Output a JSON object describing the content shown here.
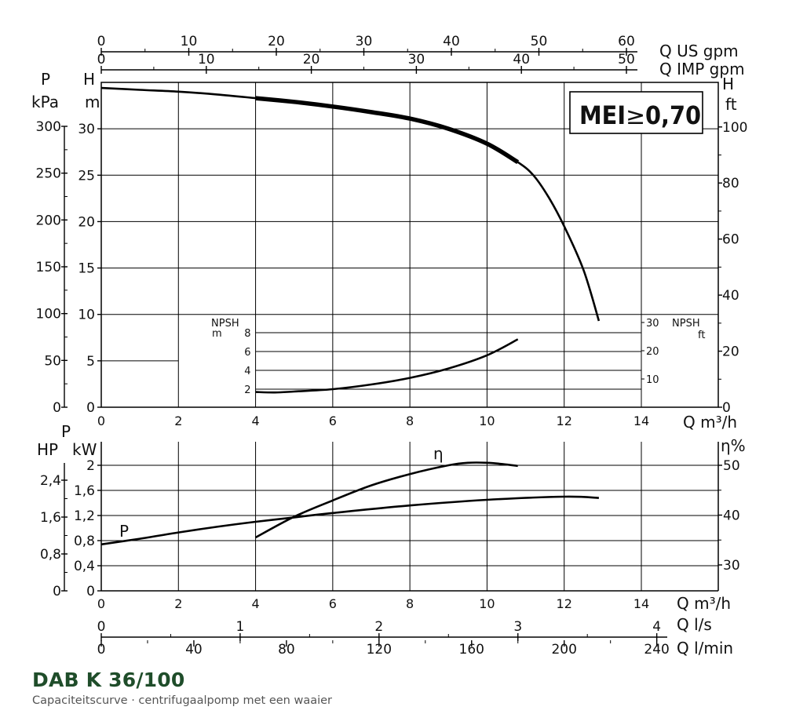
{
  "caption": {
    "title": "DAB K 36/100",
    "subtitle": "Capaciteitscurve  ·  centrifugaalpomp met een waaier"
  },
  "badge": {
    "text": "MEI",
    "symbol": "≥",
    "value": "0,70"
  },
  "colors": {
    "curve": "#000000",
    "grid": "#000000",
    "title": "#1f4d2a"
  },
  "chart_data": [
    {
      "type": "line",
      "name": "head",
      "x_unit_label": "Q m³/h",
      "xlim": [
        0,
        16
      ],
      "x_ticks": [
        0,
        2,
        4,
        6,
        8,
        10,
        12,
        14
      ],
      "top_axes": [
        {
          "label": "Q US gpm",
          "ticks": [
            "0",
            "10",
            "20",
            "30",
            "40",
            "50",
            "60"
          ],
          "values": [
            0,
            10,
            20,
            30,
            40,
            50,
            60
          ]
        },
        {
          "label": "Q IMP gpm",
          "ticks": [
            "0",
            "10",
            "20",
            "30",
            "40",
            "50"
          ],
          "values": [
            0,
            10,
            20,
            30,
            40,
            50
          ]
        }
      ],
      "left_axes": [
        {
          "label_top": "P",
          "label_bottom": "kPa",
          "ticks": [
            "0",
            "50",
            "100",
            "150",
            "200",
            "250",
            "300"
          ],
          "values": [
            0,
            50,
            100,
            150,
            200,
            250,
            300
          ]
        },
        {
          "label_top": "H",
          "label_bottom": "m",
          "ticks": [
            "0",
            "5",
            "10",
            "15",
            "20",
            "25",
            "30"
          ],
          "values": [
            0,
            5,
            10,
            15,
            20,
            25,
            30
          ]
        }
      ],
      "right_axis": {
        "label_top": "H",
        "label_bottom": "ft",
        "ticks": [
          "0",
          "20",
          "40",
          "60",
          "80",
          "100"
        ],
        "values": [
          0,
          20,
          40,
          60,
          80,
          100
        ]
      },
      "ylim": [
        0,
        35
      ],
      "y_grid": [
        5,
        10,
        15,
        20,
        25,
        30
      ],
      "x_grid": [
        2,
        4,
        6,
        8,
        10,
        12,
        14
      ],
      "series": [
        {
          "points": [
            [
              0,
              34.4
            ],
            [
              1,
              34.2
            ],
            [
              2,
              34.0
            ],
            [
              3,
              33.7
            ],
            [
              4,
              33.3
            ],
            [
              5,
              32.9
            ],
            [
              6,
              32.4
            ],
            [
              7,
              31.8
            ],
            [
              8,
              31.1
            ],
            [
              9,
              30.0
            ],
            [
              10,
              28.4
            ],
            [
              10.8,
              26.4
            ],
            [
              11.2,
              25.0
            ],
            [
              11.6,
              22.6
            ],
            [
              12,
              19.5
            ],
            [
              12.5,
              14.8
            ],
            [
              12.9,
              9.3
            ]
          ],
          "bold_range": [
            4,
            10.8
          ]
        }
      ]
    },
    {
      "type": "line",
      "name": "npsh",
      "x_range": [
        4,
        14
      ],
      "left_axis": {
        "label_top": "NPSH",
        "label_bottom": "m",
        "ticks": [
          "2",
          "4",
          "6",
          "8"
        ],
        "values": [
          2,
          4,
          6,
          8
        ]
      },
      "right_axis": {
        "label_top": "NPSH",
        "label_bottom": "ft",
        "ticks": [
          "10",
          "20",
          "30"
        ],
        "values": [
          10,
          20,
          30
        ]
      },
      "y_grid": [
        2,
        4,
        6,
        8
      ],
      "series": [
        {
          "points": [
            [
              4,
              1.7
            ],
            [
              4.5,
              1.65
            ],
            [
              5,
              1.75
            ],
            [
              6,
              2.0
            ],
            [
              7,
              2.5
            ],
            [
              8,
              3.2
            ],
            [
              9,
              4.2
            ],
            [
              10,
              5.6
            ],
            [
              10.8,
              7.3
            ]
          ]
        }
      ]
    },
    {
      "type": "line",
      "name": "power-efficiency",
      "xlim": [
        0,
        16
      ],
      "x_ticks": [
        0,
        2,
        4,
        6,
        8,
        10,
        12,
        14
      ],
      "x_unit_label": "Q m³/h",
      "left_axes": [
        {
          "label": "HP",
          "ticks": [
            "0",
            "0,8",
            "1,6",
            "2,4"
          ],
          "values": [
            0,
            0.8,
            1.6,
            2.4
          ]
        },
        {
          "label_top": "P",
          "label_bottom": "kW",
          "ticks": [
            "0",
            "0,4",
            "0,8",
            "1,2",
            "1,6",
            "2"
          ],
          "values": [
            0,
            0.4,
            0.8,
            1.2,
            1.6,
            2.0
          ]
        }
      ],
      "right_axis": {
        "label": "η%",
        "ticks": [
          "30",
          "40",
          "50"
        ],
        "values": [
          30,
          40,
          50
        ]
      },
      "ylim": [
        0,
        2.8
      ],
      "y_grid": [
        0.4,
        0.8,
        1.2,
        1.6,
        2.0
      ],
      "series": [
        {
          "name": "P",
          "points": [
            [
              0,
              0.74
            ],
            [
              1,
              0.83
            ],
            [
              2,
              0.93
            ],
            [
              3,
              1.02
            ],
            [
              4,
              1.1
            ],
            [
              5,
              1.17
            ],
            [
              6,
              1.24
            ],
            [
              8,
              1.36
            ],
            [
              10,
              1.45
            ],
            [
              12,
              1.5
            ],
            [
              12.9,
              1.48
            ]
          ]
        },
        {
          "name": "η",
          "points": [
            [
              4,
              0.85
            ],
            [
              5,
              1.18
            ],
            [
              6,
              1.44
            ],
            [
              7,
              1.68
            ],
            [
              8,
              1.86
            ],
            [
              9,
              2.0
            ],
            [
              9.5,
              2.04
            ],
            [
              10,
              2.04
            ],
            [
              10.4,
              2.02
            ],
            [
              10.8,
              1.99
            ]
          ]
        }
      ]
    },
    {
      "type": "axis",
      "name": "flow-secondary-axes",
      "axes": [
        {
          "label": "Q l/s",
          "ticks": [
            "0",
            "1",
            "2",
            "3",
            "4"
          ],
          "values": [
            0,
            1,
            2,
            3,
            4
          ]
        },
        {
          "label": "Q l/min",
          "ticks": [
            "0",
            "40",
            "80",
            "120",
            "160",
            "200",
            "240"
          ],
          "values": [
            0,
            40,
            80,
            120,
            160,
            200,
            240
          ]
        }
      ]
    }
  ]
}
